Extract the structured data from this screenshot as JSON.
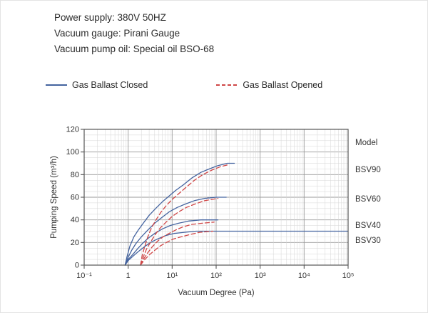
{
  "header": {
    "lines": [
      "Power supply: 380V 50HZ",
      "Vacuum gauge: Pirani Gauge",
      "Vacuum pump oil: Special oil BSO-68"
    ]
  },
  "legend": {
    "closed_label": "Gas Ballast Closed",
    "opened_label": "Gas Ballast Opened",
    "closed_color": "#44639f",
    "opened_color": "#cf4646"
  },
  "model_labels": {
    "title": "Model",
    "items": [
      "BSV90",
      "BSV60",
      "BSV40",
      "BSV30"
    ]
  },
  "chart_data": {
    "type": "line",
    "title": "",
    "xlabel": "Vacuum Degree (Pa)",
    "ylabel": "Pumping Speed (m³/h)",
    "x_scale": "log",
    "y_scale": "linear",
    "xlim": [
      0.1,
      100000
    ],
    "ylim": [
      0,
      120
    ],
    "x_ticks": [
      "10⁻¹",
      "1",
      "10¹",
      "10²",
      "10³",
      "10⁴",
      "10⁵"
    ],
    "x_tick_values": [
      0.1,
      1,
      10,
      100,
      1000,
      10000,
      100000
    ],
    "y_ticks": [
      0,
      20,
      40,
      60,
      80,
      100,
      120
    ],
    "grid": true,
    "legend_position": "top-left",
    "series": [
      {
        "name": "BSV90 Gas Ballast Closed",
        "ballast": "closed",
        "style": "solid",
        "color": "#44639f",
        "points": [
          [
            0.85,
            0
          ],
          [
            0.95,
            8
          ],
          [
            1.1,
            17
          ],
          [
            1.35,
            25
          ],
          [
            1.7,
            31
          ],
          [
            2.2,
            37
          ],
          [
            3,
            44
          ],
          [
            4.2,
            50
          ],
          [
            6,
            56
          ],
          [
            8.5,
            61
          ],
          [
            12,
            66
          ],
          [
            18,
            71
          ],
          [
            28,
            77
          ],
          [
            45,
            82
          ],
          [
            70,
            85
          ],
          [
            110,
            88
          ],
          [
            180,
            90
          ],
          [
            260,
            90
          ]
        ]
      },
      {
        "name": "BSV60 Gas Ballast Closed",
        "ballast": "closed",
        "style": "solid",
        "color": "#44639f",
        "points": [
          [
            0.85,
            0
          ],
          [
            1,
            7
          ],
          [
            1.2,
            13
          ],
          [
            1.5,
            19
          ],
          [
            2,
            25
          ],
          [
            2.8,
            31
          ],
          [
            4,
            37
          ],
          [
            5.8,
            42
          ],
          [
            8.5,
            47
          ],
          [
            13,
            51
          ],
          [
            20,
            54
          ],
          [
            32,
            57
          ],
          [
            55,
            59
          ],
          [
            100,
            60
          ],
          [
            170,
            60
          ]
        ]
      },
      {
        "name": "BSV40 Gas Ballast Closed",
        "ballast": "closed",
        "style": "solid",
        "color": "#44639f",
        "points": [
          [
            0.85,
            0
          ],
          [
            1,
            5
          ],
          [
            1.25,
            9
          ],
          [
            1.6,
            14
          ],
          [
            2.1,
            19
          ],
          [
            2.9,
            24
          ],
          [
            4,
            28
          ],
          [
            6,
            32
          ],
          [
            9,
            35
          ],
          [
            14,
            37
          ],
          [
            24,
            39
          ],
          [
            45,
            40
          ],
          [
            110,
            40
          ]
        ]
      },
      {
        "name": "BSV30 Gas Ballast Closed",
        "ballast": "closed",
        "style": "solid",
        "color": "#44639f",
        "points": [
          [
            0.85,
            0
          ],
          [
            1,
            4
          ],
          [
            1.3,
            8
          ],
          [
            1.7,
            12
          ],
          [
            2.3,
            16
          ],
          [
            3.2,
            20
          ],
          [
            4.6,
            23
          ],
          [
            7,
            26
          ],
          [
            11,
            28
          ],
          [
            19,
            29
          ],
          [
            35,
            30
          ],
          [
            100,
            30
          ],
          [
            100000,
            30
          ]
        ]
      },
      {
        "name": "BSV90 Gas Ballast Opened",
        "ballast": "opened",
        "style": "dashed",
        "color": "#cf4646",
        "points": [
          [
            1.9,
            0
          ],
          [
            2.1,
            9
          ],
          [
            2.4,
            17
          ],
          [
            2.8,
            25
          ],
          [
            3.4,
            33
          ],
          [
            4.3,
            40
          ],
          [
            5.6,
            47
          ],
          [
            7.5,
            53
          ],
          [
            10,
            58
          ],
          [
            14,
            63
          ],
          [
            21,
            69
          ],
          [
            32,
            75
          ],
          [
            50,
            80
          ],
          [
            80,
            84
          ],
          [
            125,
            87
          ],
          [
            200,
            89
          ]
        ]
      },
      {
        "name": "BSV60 Gas Ballast Opened",
        "ballast": "opened",
        "style": "dashed",
        "color": "#cf4646",
        "points": [
          [
            1.9,
            0
          ],
          [
            2.2,
            7
          ],
          [
            2.6,
            14
          ],
          [
            3.2,
            20
          ],
          [
            4.1,
            27
          ],
          [
            5.4,
            33
          ],
          [
            7.3,
            38
          ],
          [
            10,
            43
          ],
          [
            14,
            47
          ],
          [
            21,
            51
          ],
          [
            33,
            54
          ],
          [
            55,
            57
          ],
          [
            110,
            59
          ]
        ]
      },
      {
        "name": "BSV40 Gas Ballast Opened",
        "ballast": "opened",
        "style": "dashed",
        "color": "#cf4646",
        "points": [
          [
            1.9,
            0
          ],
          [
            2.3,
            6
          ],
          [
            2.8,
            11
          ],
          [
            3.5,
            16
          ],
          [
            4.6,
            21
          ],
          [
            6.2,
            25
          ],
          [
            8.5,
            28
          ],
          [
            12,
            31
          ],
          [
            18,
            34
          ],
          [
            28,
            36
          ],
          [
            48,
            37
          ],
          [
            90,
            38
          ]
        ]
      },
      {
        "name": "BSV30 Gas Ballast Opened",
        "ballast": "opened",
        "style": "dashed",
        "color": "#cf4646",
        "points": [
          [
            1.9,
            0
          ],
          [
            2.4,
            5
          ],
          [
            3,
            9
          ],
          [
            4,
            13
          ],
          [
            5.4,
            17
          ],
          [
            7.4,
            20
          ],
          [
            10.5,
            23
          ],
          [
            16,
            25
          ],
          [
            25,
            27
          ],
          [
            42,
            29
          ],
          [
            85,
            30
          ]
        ]
      }
    ]
  }
}
